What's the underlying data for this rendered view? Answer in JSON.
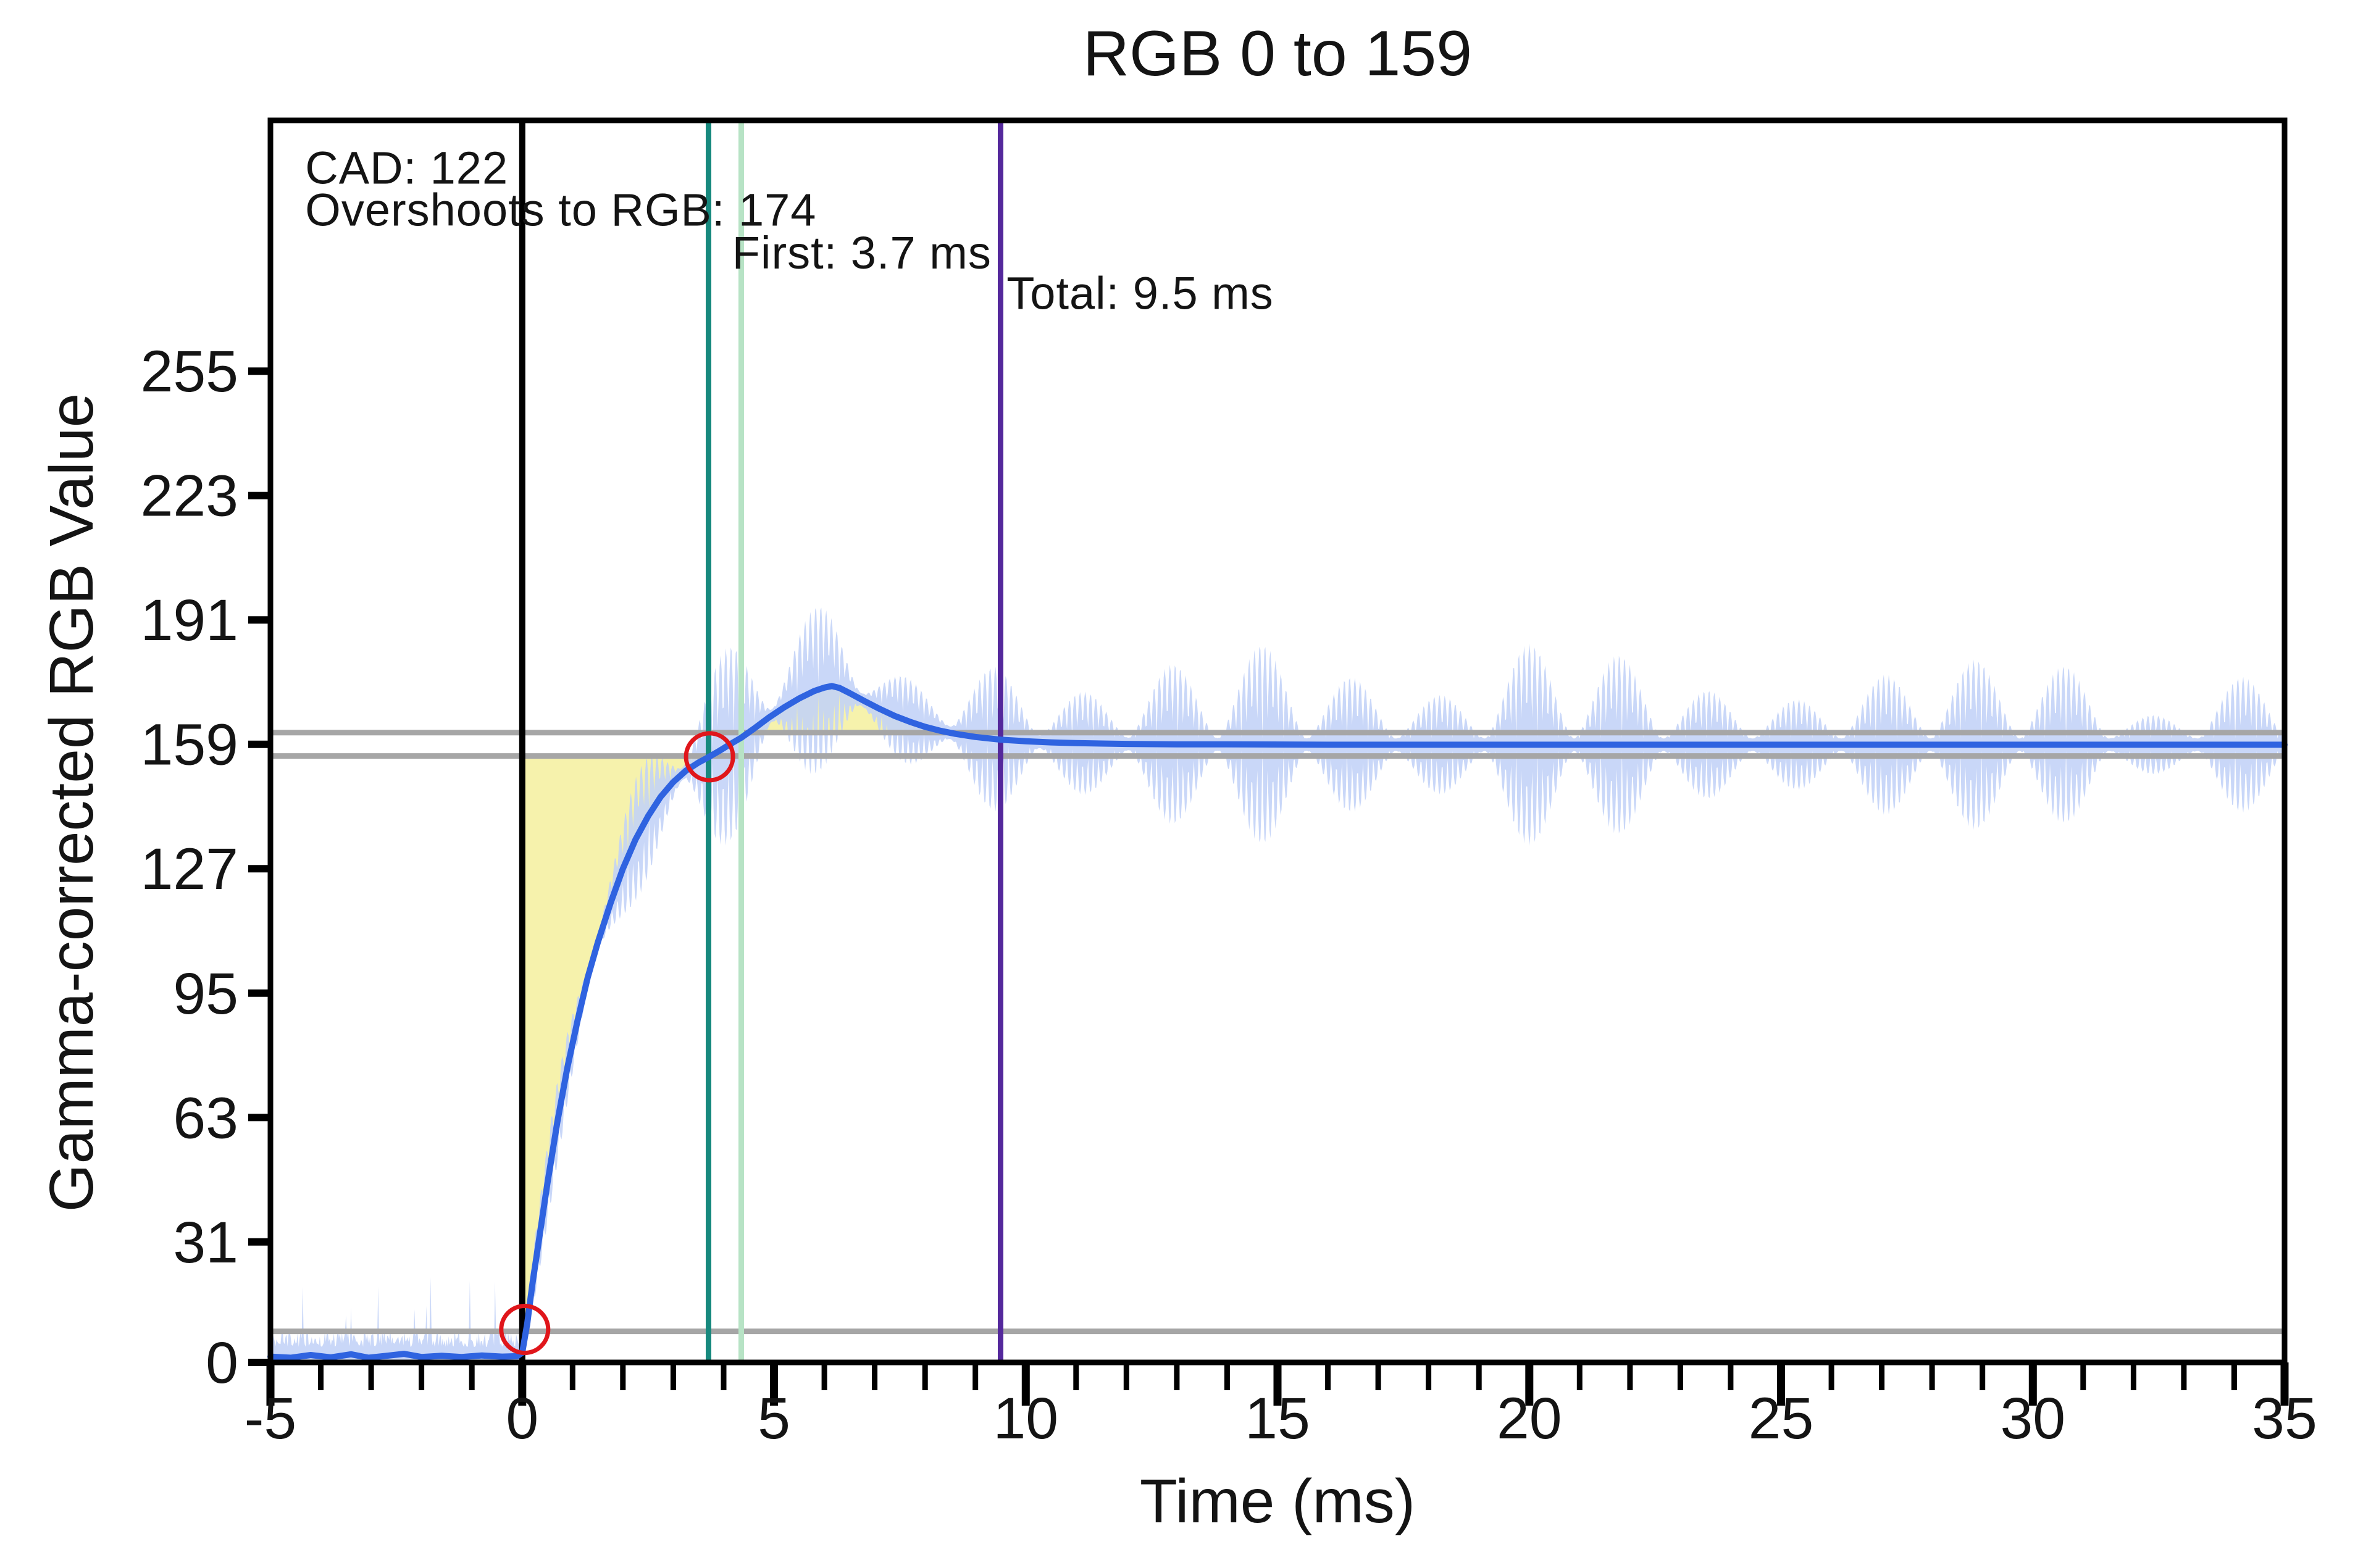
{
  "chart_data": {
    "type": "line",
    "title": "RGB 0 to 159",
    "xlabel": "Time (ms)",
    "ylabel": "Gamma-corrected RGB Value",
    "xlim": [
      -5,
      35
    ],
    "ylim": [
      0,
      319.5
    ],
    "x_ticks_major": [
      -5,
      0,
      5,
      10,
      15,
      20,
      25,
      30,
      35
    ],
    "x_minor_step": 1,
    "y_ticks": [
      0,
      31,
      63,
      95,
      127,
      159,
      191,
      223,
      255
    ],
    "grid": false,
    "legend": "none",
    "measurements": {
      "cad": 122,
      "overshoot_rgb": 174,
      "first_ms": 3.7,
      "total_ms": 9.5,
      "start_rgb": 0,
      "target_rgb": 159
    },
    "annotations": [
      {
        "id": "cad",
        "text": "CAD: 122",
        "t": -4.31,
        "v": 303.2
      },
      {
        "id": "overshoot",
        "text": "Overshoots to RGB: 174",
        "t": -4.31,
        "v": 292.4
      },
      {
        "id": "first",
        "text": "First: 3.7 ms",
        "t": 4.17,
        "v": 281.4
      },
      {
        "id": "total",
        "text": "Total: 9.5 ms",
        "t": 9.62,
        "v": 271.0
      }
    ],
    "event_lines": [
      {
        "id": "stimulus",
        "t": 0,
        "color": "#000000",
        "width": 10
      },
      {
        "id": "first-response",
        "t": 3.7,
        "color": "#17897E",
        "width": 9
      },
      {
        "id": "secondary-response",
        "t": 4.35,
        "color": "#B7E3C5",
        "width": 9
      },
      {
        "id": "total-response",
        "t": 9.5,
        "color": "#54289C",
        "width": 9
      }
    ],
    "threshold_lines": [
      {
        "id": "upper-tolerance",
        "v": 162,
        "color": "#A6A6A6",
        "width": 9
      },
      {
        "id": "lower-tolerance",
        "v": 156,
        "color": "#A6A6A6",
        "width": 9
      },
      {
        "id": "start-threshold",
        "v": 8,
        "color": "#A6A6A6",
        "width": 9
      }
    ],
    "crossing_markers": {
      "color": "#E0161B",
      "radius": 38,
      "stroke_width": 7,
      "points": [
        {
          "t": 0.05,
          "v": 8.5
        },
        {
          "t": 3.72,
          "v": 155.8
        }
      ]
    },
    "overshoot_fill": {
      "color": "#F5F1A3",
      "opacity": 0.9,
      "regions": [
        {
          "t0": 0.0,
          "t1": 3.74,
          "bound": 156,
          "side": "below"
        },
        {
          "t0": 4.52,
          "t1": 8.45,
          "bound": 162,
          "side": "above"
        }
      ]
    },
    "smoothed_series": {
      "name": "smoothed-response",
      "color": "#2F63E0",
      "width": 10,
      "points": [
        [
          -5,
          1.5
        ],
        [
          -4.6,
          1.2
        ],
        [
          -4.2,
          1.9
        ],
        [
          -3.8,
          1.3
        ],
        [
          -3.4,
          2.1
        ],
        [
          -3.05,
          1.2
        ],
        [
          -2.7,
          1.7
        ],
        [
          -2.35,
          2.2
        ],
        [
          -2,
          1.4
        ],
        [
          -1.6,
          1.7
        ],
        [
          -1.2,
          1.4
        ],
        [
          -0.8,
          1.8
        ],
        [
          -0.4,
          1.5
        ],
        [
          -0.1,
          1.6
        ],
        [
          0,
          2.5
        ],
        [
          0.1,
          10
        ],
        [
          0.2,
          20
        ],
        [
          0.35,
          33
        ],
        [
          0.5,
          46
        ],
        [
          0.7,
          62
        ],
        [
          0.9,
          76
        ],
        [
          1.1,
          88
        ],
        [
          1.3,
          99
        ],
        [
          1.5,
          108
        ],
        [
          1.75,
          118
        ],
        [
          2,
          127
        ],
        [
          2.25,
          134.5
        ],
        [
          2.5,
          140.5
        ],
        [
          2.75,
          145.5
        ],
        [
          3,
          149.3
        ],
        [
          3.25,
          152.2
        ],
        [
          3.5,
          154.3
        ],
        [
          3.7,
          155.7
        ],
        [
          3.9,
          157.2
        ],
        [
          4.1,
          158.8
        ],
        [
          4.35,
          160.7
        ],
        [
          4.6,
          163
        ],
        [
          4.9,
          165.9
        ],
        [
          5.2,
          168.5
        ],
        [
          5.5,
          170.8
        ],
        [
          5.8,
          172.7
        ],
        [
          6,
          173.6
        ],
        [
          6.15,
          174
        ],
        [
          6.3,
          173.5
        ],
        [
          6.5,
          172.2
        ],
        [
          6.8,
          170.1
        ],
        [
          7.1,
          168.1
        ],
        [
          7.4,
          166.3
        ],
        [
          7.7,
          164.8
        ],
        [
          8,
          163.5
        ],
        [
          8.3,
          162.5
        ],
        [
          8.6,
          161.7
        ],
        [
          9,
          160.9
        ],
        [
          9.5,
          160.2
        ],
        [
          10,
          159.8
        ],
        [
          10.5,
          159.5
        ],
        [
          11,
          159.3
        ],
        [
          12,
          159.1
        ],
        [
          13,
          159
        ],
        [
          14,
          159
        ],
        [
          16,
          158.9
        ],
        [
          18,
          158.9
        ],
        [
          20,
          158.9
        ],
        [
          22,
          158.9
        ],
        [
          24,
          158.9
        ],
        [
          26,
          158.9
        ],
        [
          28,
          158.9
        ],
        [
          30,
          158.9
        ],
        [
          32,
          158.9
        ],
        [
          34,
          158.9
        ],
        [
          35,
          158.9
        ]
      ]
    },
    "raw_series": {
      "name": "raw-signal",
      "color": "#C2D2F7",
      "opacity": 0.88,
      "pre_step_base": 4.5,
      "pre_spike_max": 22,
      "spike_period_ms": 0.105,
      "burst_period_ms": 1.77,
      "max_amplitude": 27,
      "seed": 42
    }
  }
}
